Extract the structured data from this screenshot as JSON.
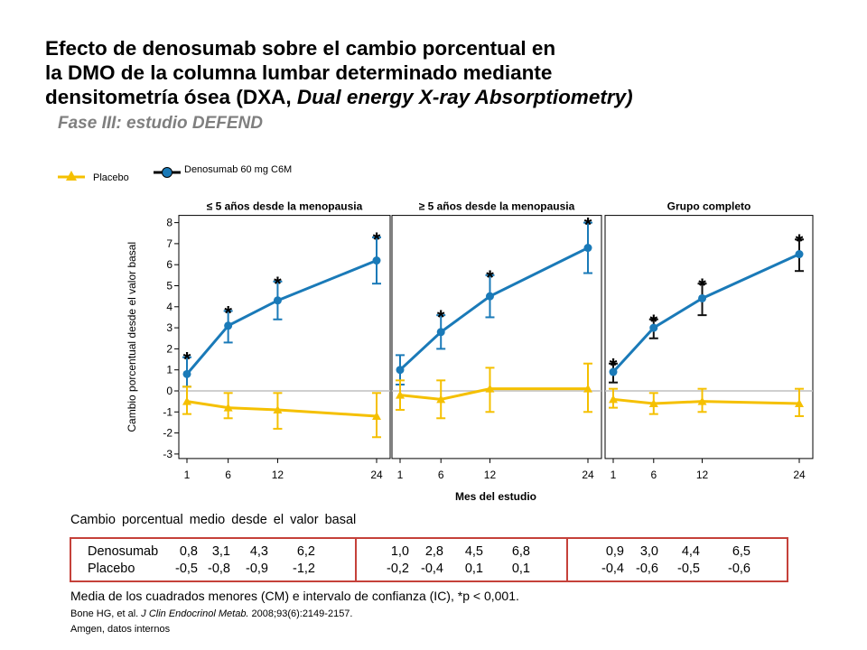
{
  "title": {
    "line1": "Efecto de denosumab sobre el cambio porcentual en",
    "line2": "la DMO de la columna lumbar determinado mediante",
    "line3_pre": "densitometría ósea (DXA, ",
    "line3_italic": "Dual energy X-ray Absorptiometry)",
    "subtitle": "Fase III: estudio DEFEND"
  },
  "legend": {
    "placebo": "Placebo",
    "denosumab": "Denosumab 60 mg C6M"
  },
  "colors": {
    "placebo": "#f5c000",
    "denosumab": "#1a7ab8",
    "denosumab_marker_group3": "#111111",
    "baseline": "#bfbfbf",
    "table_border": "#c5413a"
  },
  "chart_data": {
    "type": "line",
    "ylabel": "Cambio porcentual desde el valor basal",
    "xlabel": "Mes del estudio",
    "ylim": [
      -3,
      8
    ],
    "yticks": [
      "8",
      "7",
      "6",
      "5",
      "4",
      "3",
      "2",
      "1",
      "0",
      "-1",
      "-2",
      "-3"
    ],
    "x": [
      1,
      6,
      12,
      24
    ],
    "xtick_labels": [
      "1",
      "6",
      "12",
      "24"
    ],
    "significance_marker": "*",
    "panels": [
      {
        "title": "≤ 5 años desde la menopausia",
        "series": [
          {
            "name": "Denosumab",
            "values": [
              0.8,
              3.1,
              4.3,
              6.2
            ],
            "ci_low": [
              0.2,
              2.3,
              3.4,
              5.1
            ],
            "ci_high": [
              1.6,
              3.8,
              5.2,
              7.3
            ],
            "significant": [
              true,
              true,
              true,
              true
            ]
          },
          {
            "name": "Placebo",
            "values": [
              -0.5,
              -0.8,
              -0.9,
              -1.2
            ],
            "ci_low": [
              -1.1,
              -1.3,
              -1.8,
              -2.2
            ],
            "ci_high": [
              0.2,
              -0.1,
              -0.1,
              -0.1
            ],
            "significant": [
              false,
              false,
              false,
              false
            ]
          }
        ]
      },
      {
        "title": "≥ 5 años desde la menopausia",
        "series": [
          {
            "name": "Denosumab",
            "values": [
              1.0,
              2.8,
              4.5,
              6.8
            ],
            "ci_low": [
              0.3,
              2.0,
              3.5,
              5.6
            ],
            "ci_high": [
              1.7,
              3.6,
              5.5,
              8.0
            ],
            "significant": [
              false,
              true,
              true,
              true
            ]
          },
          {
            "name": "Placebo",
            "values": [
              -0.2,
              -0.4,
              0.1,
              0.1
            ],
            "ci_low": [
              -0.9,
              -1.3,
              -1.0,
              -1.0
            ],
            "ci_high": [
              0.5,
              0.5,
              1.1,
              1.3
            ],
            "significant": [
              false,
              false,
              false,
              false
            ]
          }
        ]
      },
      {
        "title": "Grupo completo",
        "series": [
          {
            "name": "Denosumab",
            "values": [
              0.9,
              3.0,
              4.4,
              6.5
            ],
            "ci_low": [
              0.4,
              2.5,
              3.6,
              5.7
            ],
            "ci_high": [
              1.3,
              3.4,
              5.1,
              7.2
            ],
            "significant": [
              true,
              true,
              true,
              true
            ]
          },
          {
            "name": "Placebo",
            "values": [
              -0.4,
              -0.6,
              -0.5,
              -0.6
            ],
            "ci_low": [
              -0.8,
              -1.1,
              -1.0,
              -1.2
            ],
            "ci_high": [
              0.1,
              -0.1,
              0.1,
              0.1
            ],
            "significant": [
              false,
              false,
              false,
              false
            ]
          }
        ]
      }
    ]
  },
  "table": {
    "heading": "Cambio porcentual medio desde el valor basal",
    "rows": [
      {
        "label": "Denosumab",
        "values": [
          "0,8",
          "3,1",
          "4,3",
          "6,2",
          "1,0",
          "2,8",
          "4,5",
          "6,8",
          "0,9",
          "3,0",
          "4,4",
          "6,5"
        ]
      },
      {
        "label": "Placebo",
        "values": [
          "-0,5",
          "-0,8",
          "-0,9",
          "-1,2",
          "-0,2",
          "-0,4",
          "0,1",
          "0,1",
          "-0,4",
          "-0,6",
          "-0,5",
          "-0,6"
        ]
      }
    ]
  },
  "footnote": "Media de los cuadrados menores (CM) e intervalo de confianza (IC), *p < 0,001.",
  "references": {
    "authors": "Bone HG, et al. ",
    "journal": "J Clin Endocrinol Metab.",
    "details": " 2008;93(6):2149-2157.",
    "source": "Amgen, datos internos"
  }
}
